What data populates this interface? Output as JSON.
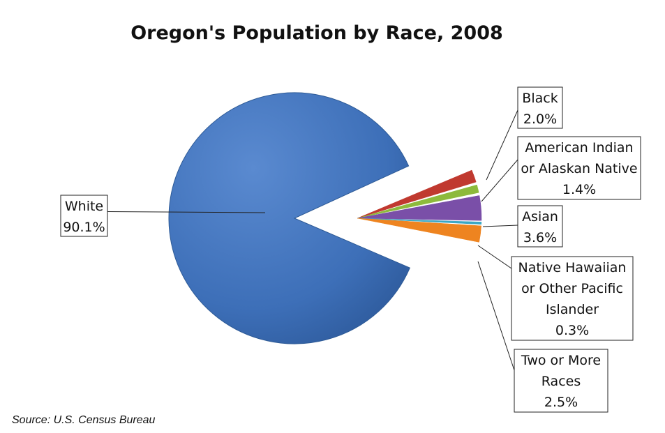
{
  "chart_data": {
    "type": "pie",
    "title": "Oregon's Population by Race, 2008",
    "source": "Source: U.S. Census Bureau",
    "slices": [
      {
        "label_lines": [
          "Black",
          "2.0%"
        ],
        "value": 2.0,
        "color": "#c0392f"
      },
      {
        "label_lines": [
          "American Indian",
          "or Alaskan Native",
          "1.4%"
        ],
        "value": 1.4,
        "color": "#8dba3c"
      },
      {
        "label_lines": [
          "Asian",
          "3.6%"
        ],
        "value": 3.6,
        "color": "#7a4fa8"
      },
      {
        "label_lines": [
          "Native Hawaiian",
          "or Other Pacific",
          "Islander",
          "0.3%"
        ],
        "value": 0.3,
        "color": "#3aa7c4"
      },
      {
        "label_lines": [
          "Two or More",
          "Races",
          "2.5%"
        ],
        "value": 2.5,
        "color": "#ee8420"
      },
      {
        "label_lines": [
          "White",
          "90.1%"
        ],
        "value": 90.1,
        "color": "#3d6fb8"
      }
    ]
  }
}
